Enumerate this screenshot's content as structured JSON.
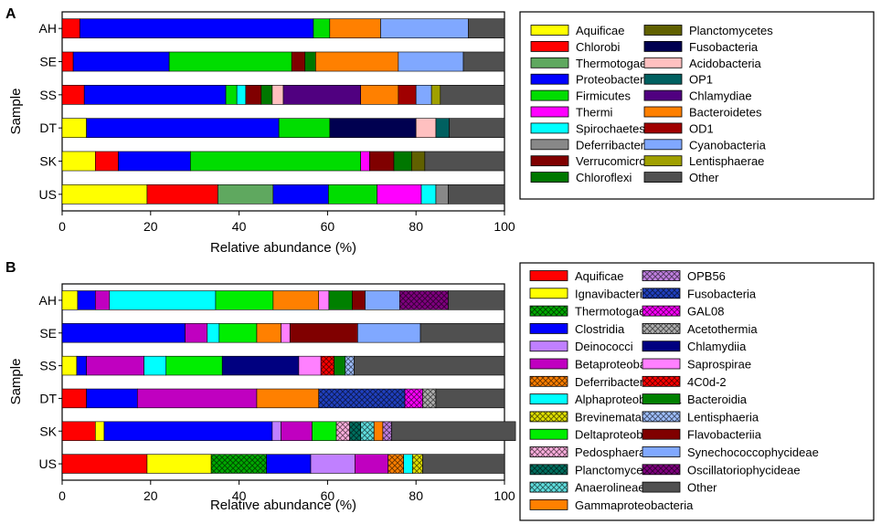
{
  "colors": {
    "Aquificae": "#ffff00",
    "Chlorobi": "#ff0000",
    "Thermotogae": "#5fa85f",
    "Proteobacteria": "#0000ff",
    "Firmicutes": "#00dd00",
    "Thermi": "#ff00ff",
    "Spirochaetes": "#00ffff",
    "Deferribacteres": "#888888",
    "Verrucomicrobia": "#800000",
    "Chloroflexi": "#007700",
    "Planctomycetes": "#606000",
    "Fusobacteria": "#000050",
    "Acidobacteria": "#ffc0c0",
    "OP1": "#006060",
    "Chlamydiae": "#500080",
    "Bacteroidetes": "#ff8000",
    "OD1": "#a00000",
    "Cyanobacteria": "#80a8ff",
    "Lentisphaerae": "#a0a000",
    "Other": "#505050",
    "Aquificae_B": "#ff0000",
    "Ignavibacteria": "#ffff00",
    "Thermotogae_B": "#00aa00",
    "Clostridia": "#0000ff",
    "Deinococci": "#c080ff",
    "Betaproteobacteria": "#c000c0",
    "Deferribacteres_B": "#ff8000",
    "Alphaproteobacteria": "#00ffff",
    "Brevinematae": "#e0e000",
    "Deltaproteobacteria": "#00ee00",
    "Pedosphaerae": "#ffb0e0",
    "Planctomycetia": "#007060",
    "Anaerolineae": "#60e0e0",
    "Gammaproteobacteria": "#ff8000",
    "OPB56": "#c080e0",
    "Fusobacteria_B": "#2040c0",
    "GAL08": "#ff00ff",
    "Acetothermia": "#b0b0b0",
    "Chlamydiia": "#000080",
    "Saprospirae": "#ff80ff",
    "4C0d-2": "#ff0000",
    "Bacteroidia": "#008000",
    "Lentisphaeria": "#a0c0ff",
    "Flavobacteriia": "#800000",
    "Synechococcophycideae": "#80a8ff",
    "Oscillatoriophycideae": "#800080",
    "Other_B": "#505050"
  },
  "chart_data": [
    {
      "type": "bar",
      "orientation": "horizontal",
      "stacked": true,
      "panel_label": "A",
      "ylabel": "Sample",
      "xlabel": "Relative abundance (%)",
      "xlim": [
        0,
        100
      ],
      "xticks": [
        "0",
        "20",
        "40",
        "60",
        "80",
        "100"
      ],
      "categories": [
        "AH",
        "SE",
        "SS",
        "DT",
        "SK",
        "US"
      ],
      "legend_cols": [
        [
          "Aquificae",
          "Chlorobi",
          "Thermotogae",
          "Proteobacteria",
          "Firmicutes",
          "Thermi",
          "Spirochaetes",
          "Deferribacteres",
          "Verrucomicrobia",
          "Chloroflexi"
        ],
        [
          "Planctomycetes",
          "Fusobacteria",
          "Acidobacteria",
          "OP1",
          "Chlamydiae",
          "Bacteroidetes",
          "OD1",
          "Cyanobacteria",
          "Lentisphaerae",
          "Other"
        ]
      ],
      "series": [
        {
          "name": "Aquificae",
          "color_key": "Aquificae",
          "values": [
            0,
            0,
            0,
            5.5,
            7.5,
            19.2
          ]
        },
        {
          "name": "Chlorobi",
          "color_key": "Chlorobi",
          "values": [
            4,
            2.5,
            5,
            0,
            5.2,
            16
          ]
        },
        {
          "name": "Thermotogae",
          "color_key": "Thermotogae",
          "values": [
            0,
            0,
            0,
            0,
            0,
            12.5
          ]
        },
        {
          "name": "Proteobacteria",
          "color_key": "Proteobacteria",
          "values": [
            52.8,
            21.7,
            32,
            43.5,
            16.3,
            12.5
          ]
        },
        {
          "name": "Firmicutes",
          "color_key": "Firmicutes",
          "values": [
            3.7,
            27.7,
            2.5,
            11.5,
            38.5,
            11
          ]
        },
        {
          "name": "Thermi",
          "color_key": "Thermi",
          "values": [
            0,
            0,
            0,
            0,
            2,
            10
          ]
        },
        {
          "name": "Spirochaetes",
          "color_key": "Spirochaetes",
          "values": [
            0,
            0,
            2,
            0,
            0,
            3.3
          ]
        },
        {
          "name": "Deferribacteres",
          "color_key": "Deferribacteres",
          "values": [
            0,
            0,
            0,
            0,
            0,
            2.8
          ]
        },
        {
          "name": "Verrucomicrobia",
          "color_key": "Verrucomicrobia",
          "values": [
            0,
            3,
            3.5,
            0,
            5.5,
            0
          ]
        },
        {
          "name": "Chloroflexi",
          "color_key": "Chloroflexi",
          "values": [
            0,
            2.4,
            2.5,
            0,
            4,
            0
          ]
        },
        {
          "name": "Planctomycetes",
          "color_key": "Planctomycetes",
          "values": [
            0,
            0,
            0,
            0,
            3,
            0
          ]
        },
        {
          "name": "Fusobacteria",
          "color_key": "Fusobacteria",
          "values": [
            0,
            0,
            0,
            19.5,
            0,
            0
          ]
        },
        {
          "name": "Acidobacteria",
          "color_key": "Acidobacteria",
          "values": [
            0,
            0,
            2.5,
            4.5,
            0,
            0
          ]
        },
        {
          "name": "OP1",
          "color_key": "OP1",
          "values": [
            0,
            0,
            0,
            3,
            0,
            0
          ]
        },
        {
          "name": "Chlamydiae",
          "color_key": "Chlamydiae",
          "values": [
            0,
            0,
            17.5,
            0,
            0,
            0
          ]
        },
        {
          "name": "Bacteroidetes",
          "color_key": "Bacteroidetes",
          "values": [
            11.5,
            18.7,
            8.5,
            0,
            0,
            0
          ]
        },
        {
          "name": "OD1",
          "color_key": "OD1",
          "values": [
            0,
            0,
            4,
            0,
            0,
            0
          ]
        },
        {
          "name": "Cyanobacteria",
          "color_key": "Cyanobacteria",
          "values": [
            19.8,
            14.7,
            3.5,
            0,
            0,
            0
          ]
        },
        {
          "name": "Lentisphaerae",
          "color_key": "Lentisphaerae",
          "values": [
            0,
            0,
            2,
            0,
            0,
            0
          ]
        },
        {
          "name": "Other",
          "color_key": "Other",
          "values": [
            8.2,
            9.3,
            14.5,
            12.5,
            18,
            12.7
          ]
        }
      ]
    },
    {
      "type": "bar",
      "orientation": "horizontal",
      "stacked": true,
      "panel_label": "B",
      "ylabel": "Sample",
      "xlabel": "Relative abundance (%)",
      "xlim": [
        0,
        100
      ],
      "xticks": [
        "0",
        "20",
        "40",
        "60",
        "80",
        "100"
      ],
      "categories": [
        "AH",
        "SE",
        "SS",
        "DT",
        "SK",
        "US"
      ],
      "legend_cols": [
        [
          "Aquificae",
          "Ignavibacteria",
          "Thermotogae",
          "Clostridia",
          "Deinococci",
          "Betaproteobacteria",
          "Deferribacteres",
          "Alphaproteobacteria",
          "Brevinematae",
          "Deltaproteobacteria",
          "Pedosphaerae",
          "Planctomycetia",
          "Anaerolineae",
          "Gammaproteobacteria"
        ],
        [
          "OPB56",
          "Fusobacteria",
          "GAL08",
          "Acetothermia",
          "Chlamydiia",
          "Saprospirae",
          "4C0d-2",
          "Bacteroidia",
          "Lentisphaeria",
          "Flavobacteriia",
          "Synechococcophycideae",
          "Oscillatoriophycideae",
          "Other"
        ]
      ],
      "series": [
        {
          "name": "Aquificae",
          "color_key": "Aquificae_B",
          "values": [
            0,
            0,
            0,
            5.5,
            7.5,
            19.2
          ]
        },
        {
          "name": "Ignavibacteria",
          "color_key": "Ignavibacteria",
          "values": [
            3.5,
            0,
            3.3,
            0,
            2,
            14.5
          ]
        },
        {
          "name": "Thermotogae",
          "color_key": "Thermotogae_B",
          "values": [
            0,
            0,
            0,
            0,
            0,
            12.5
          ]
        },
        {
          "name": "Clostridia",
          "color_key": "Clostridia",
          "values": [
            4,
            27.8,
            2.2,
            11.5,
            38,
            10
          ]
        },
        {
          "name": "Deinococci",
          "color_key": "Deinococci",
          "values": [
            0,
            0,
            0,
            0,
            2,
            10
          ]
        },
        {
          "name": "Betaproteobacteria",
          "color_key": "Betaproteobacteria",
          "values": [
            3.2,
            5,
            13,
            27,
            7,
            7.5
          ]
        },
        {
          "name": "Deferribacteres",
          "color_key": "Deferribacteres_B",
          "values": [
            0,
            0,
            0,
            0,
            0,
            3.5
          ]
        },
        {
          "name": "Alphaproteobacteria",
          "color_key": "Alphaproteobacteria",
          "values": [
            24,
            2.7,
            5,
            0,
            0,
            2
          ]
        },
        {
          "name": "Brevinematae",
          "color_key": "Brevinematae",
          "values": [
            0,
            0,
            0,
            0,
            0,
            2.3
          ]
        },
        {
          "name": "Deltaproteobacteria",
          "color_key": "Deltaproteobacteria",
          "values": [
            13,
            8.5,
            12.7,
            0,
            5.5,
            0
          ]
        },
        {
          "name": "Pedosphaerae",
          "color_key": "Pedosphaerae",
          "values": [
            0,
            0,
            0,
            0,
            3,
            0
          ]
        },
        {
          "name": "Planctomycetia",
          "color_key": "Planctomycetia",
          "values": [
            0,
            0,
            0,
            0,
            2.5,
            0
          ]
        },
        {
          "name": "Anaerolineae",
          "color_key": "Anaerolineae",
          "values": [
            0,
            0,
            0,
            0,
            3,
            0
          ]
        },
        {
          "name": "Gammaproteobacteria",
          "color_key": "Gammaproteobacteria",
          "values": [
            10.3,
            5.5,
            0,
            14,
            2,
            0
          ]
        },
        {
          "name": "OPB56",
          "color_key": "OPB56",
          "values": [
            0,
            0,
            0,
            0,
            2,
            0
          ]
        },
        {
          "name": "Fusobacteria",
          "color_key": "Fusobacteria_B",
          "values": [
            0,
            0,
            0,
            19.5,
            0,
            0
          ]
        },
        {
          "name": "GAL08",
          "color_key": "GAL08",
          "values": [
            0,
            0,
            0,
            4,
            0,
            0
          ]
        },
        {
          "name": "Acetothermia",
          "color_key": "Acetothermia",
          "values": [
            0,
            0,
            0,
            3,
            0,
            0
          ]
        },
        {
          "name": "Chlamydiia",
          "color_key": "Chlamydiia",
          "values": [
            0,
            0,
            17.3,
            0,
            0,
            0
          ]
        },
        {
          "name": "Saprospirae",
          "color_key": "Saprospirae",
          "values": [
            2.3,
            2,
            5,
            0,
            0,
            0
          ]
        },
        {
          "name": "4C0d-2",
          "color_key": "4C0d-2",
          "values": [
            0,
            0,
            3,
            0,
            0,
            0
          ]
        },
        {
          "name": "Bacteroidia",
          "color_key": "Bacteroidia",
          "values": [
            5.3,
            0,
            2.5,
            0,
            0,
            0
          ]
        },
        {
          "name": "Lentisphaeria",
          "color_key": "Lentisphaeria",
          "values": [
            0,
            0,
            2,
            0,
            0,
            0
          ]
        },
        {
          "name": "Flavobacteriia",
          "color_key": "Flavobacteriia",
          "values": [
            2.9,
            15.3,
            0,
            0,
            0,
            0
          ]
        },
        {
          "name": "Synechococcophycideae",
          "color_key": "Synechococcophycideae",
          "values": [
            7.8,
            14.2,
            0,
            0,
            0,
            0
          ]
        },
        {
          "name": "Oscillatoriophycideae",
          "color_key": "Oscillatoriophycideae",
          "values": [
            11,
            0,
            0,
            0,
            0,
            0
          ]
        },
        {
          "name": "Other",
          "color_key": "Other_B",
          "values": [
            12.7,
            19,
            34,
            15.5,
            28,
            18.5
          ]
        }
      ]
    }
  ]
}
